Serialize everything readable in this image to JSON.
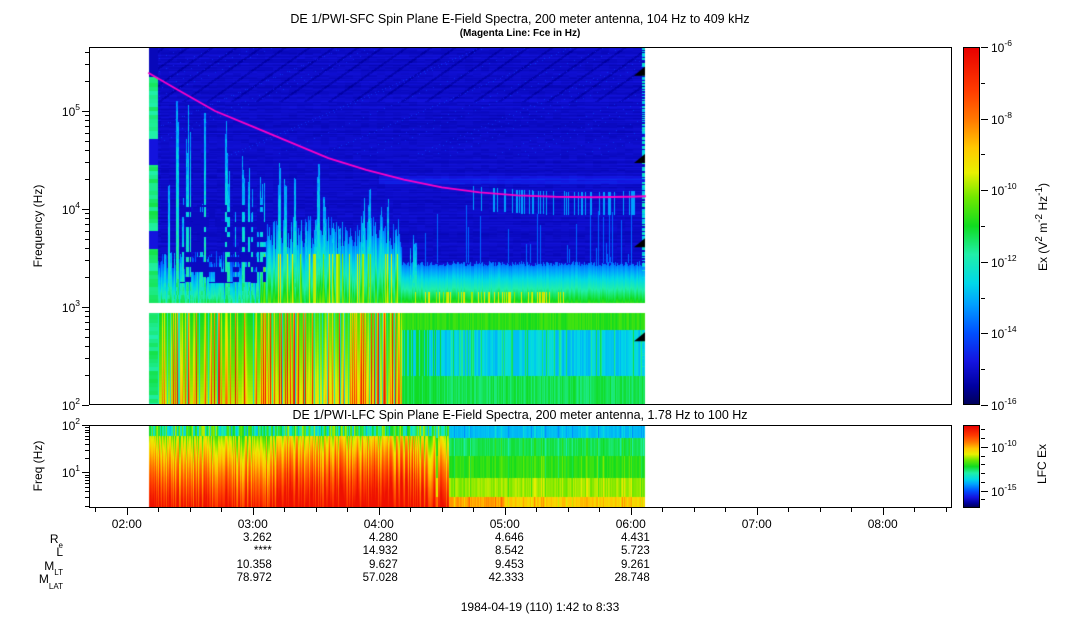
{
  "header": {
    "title": "DE 1/PWI-SFC  Spin Plane E-Field Spectra, 200 meter antenna, 104 Hz to 409 kHz",
    "subtitle": "(Magenta Line: Fce in Hz)"
  },
  "sfc_panel": {
    "ylabel": "Frequency (Hz)",
    "ytick_exponents": [
      5,
      4,
      3,
      2
    ]
  },
  "lfc_panel": {
    "title": "DE 1/PWI-LFC  Spin Plane E-Field Spectra, 200 meter antenna, 1.78 Hz to 100 Hz",
    "ylabel": "Freq (Hz)",
    "ytick_exponents": [
      2,
      1
    ]
  },
  "colorbars": {
    "sfc": {
      "label_segments": [
        {
          "t": "Ex (V"
        },
        {
          "sup": "2"
        },
        {
          "t": " m"
        },
        {
          "sup": "-2"
        },
        {
          "t": " Hz"
        },
        {
          "sup": "-1"
        },
        {
          "t": ")"
        }
      ],
      "tick_exponents": [
        -6,
        -8,
        -10,
        -12,
        -14,
        -16
      ]
    },
    "lfc": {
      "label": "LFC Ex",
      "tick_exponents": [
        -10,
        -15
      ]
    }
  },
  "time_axis": {
    "labels": [
      "02:00",
      "03:00",
      "04:00",
      "05:00",
      "06:00",
      "07:00",
      "08:00"
    ],
    "start_hour": 1.7,
    "end_hour": 8.55
  },
  "ephemeris": {
    "row_labels": [
      {
        "main": "R",
        "sub": "e"
      },
      {
        "main": "L",
        "sub": ""
      },
      {
        "main": "M",
        "sub": "LT"
      },
      {
        "main": "M",
        "sub": "LAT"
      }
    ],
    "columns": [
      {
        "time": "03:00",
        "values": [
          "3.262",
          "****",
          "10.358",
          "78.972"
        ]
      },
      {
        "time": "04:00",
        "values": [
          "4.280",
          "14.932",
          "9.627",
          "57.028"
        ]
      },
      {
        "time": "05:00",
        "values": [
          "4.646",
          "8.542",
          "9.453",
          "42.333"
        ]
      },
      {
        "time": "06:00",
        "values": [
          "4.431",
          "5.723",
          "9.261",
          "28.748"
        ]
      }
    ]
  },
  "footer": "1984-04-19 (110) 1:42 to 8:33",
  "chart_data": {
    "type": "heatmap",
    "colormap_stops": [
      [
        0.0,
        "#00005A"
      ],
      [
        0.05,
        "#0000A0"
      ],
      [
        0.12,
        "#1414E0"
      ],
      [
        0.2,
        "#0050FF"
      ],
      [
        0.28,
        "#00A0FF"
      ],
      [
        0.34,
        "#00D8E8"
      ],
      [
        0.42,
        "#20EFA8"
      ],
      [
        0.5,
        "#10DC20"
      ],
      [
        0.58,
        "#70E800"
      ],
      [
        0.65,
        "#E8F000"
      ],
      [
        0.72,
        "#FFC800"
      ],
      [
        0.8,
        "#FF7800"
      ],
      [
        0.88,
        "#FF3C00"
      ],
      [
        1.0,
        "#E80000"
      ]
    ],
    "magenta_line_color": "#FF00C8",
    "panels": [
      {
        "id": "sfc",
        "title": "DE 1/PWI-SFC Spin Plane E-Field Spectra, 200 meter antenna, 104 Hz to 409 kHz",
        "x_range_hours": [
          1.7,
          8.55
        ],
        "x_tick_hours": [
          2,
          3,
          4,
          5,
          6,
          7,
          8
        ],
        "y_scale": "log",
        "y_range_hz": [
          100,
          450000
        ],
        "color_scale": "log",
        "color_range": [
          "1e-16",
          "1e-6"
        ],
        "data_time_range_hours": [
          2.17,
          6.12
        ],
        "white_gap_band_loghz": [
          2.945,
          3.045
        ],
        "fce_line_hours_loghz": [
          [
            2.17,
            5.39
          ],
          [
            2.4,
            5.22
          ],
          [
            2.7,
            5.0
          ],
          [
            3.0,
            4.84
          ],
          [
            3.3,
            4.68
          ],
          [
            3.6,
            4.52
          ],
          [
            3.9,
            4.4
          ],
          [
            4.2,
            4.3
          ],
          [
            4.5,
            4.22
          ],
          [
            4.8,
            4.17
          ],
          [
            5.1,
            4.14
          ],
          [
            5.4,
            4.125
          ],
          [
            5.7,
            4.12
          ],
          [
            6.0,
            4.125
          ],
          [
            6.12,
            4.13
          ]
        ],
        "edge_marker_triangles_loghz": [
          5.39,
          4.5,
          3.64,
          2.68
        ],
        "features": [
          "dark blue background (~1e-15) above 10 kHz across all data",
          "auroral-hiss funnel of cyan vertical streaks 02:10-04:10, upper edge falling from ~150 kHz to ~10 kHz",
          "green/cyan emission band 1-4 kHz, brightest (green-yellow) 03:00-04:10",
          "dark-blue dropout patches 02:25-03:05 near 2-10 kHz",
          "white data gap near 1 kHz across the whole pass",
          "100-900 Hz band: green with intense orange/red streaks 02:10-04:10, cyan-blue core with green edges 04:10-06:07",
          "teal calibration column at data start 02:10",
          "magenta Fce line decaying from ~250 kHz to ~13 kHz"
        ]
      },
      {
        "id": "lfc",
        "title": "DE 1/PWI-LFC Spin Plane E-Field Spectra, 200 meter antenna, 1.78 Hz to 100 Hz",
        "x_range_hours": [
          1.7,
          8.55
        ],
        "y_scale": "log",
        "y_range_hz": [
          1.78,
          100
        ],
        "data_time_range_hours": [
          2.17,
          6.12
        ],
        "features": [
          "intense red/orange broadband 02:10-04:30 strongest toward lowest frequencies",
          "after 04:30: layered gradient cyan (top) / green / yellow / orange (bottom) until 06:07"
        ]
      }
    ]
  }
}
